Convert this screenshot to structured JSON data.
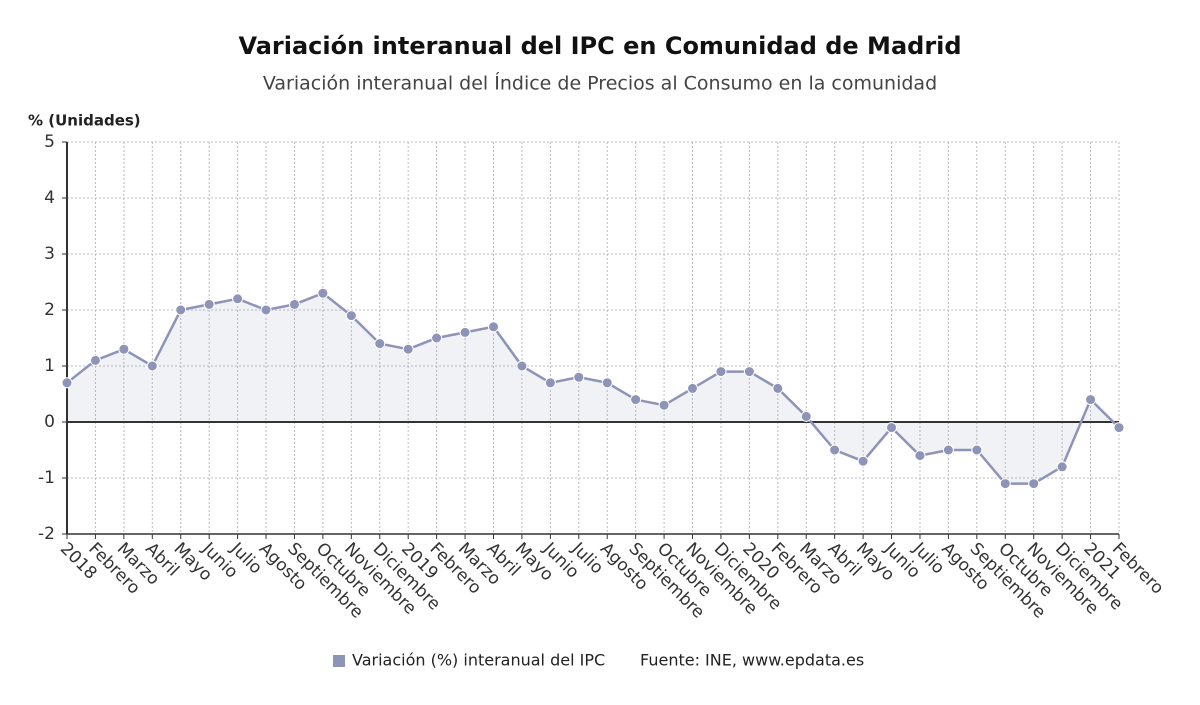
{
  "chart_data": {
    "type": "line",
    "title": "Variación interanual del IPC en Comunidad de Madrid",
    "subtitle": "Variación interanual del Índice de Precios al Consumo en la comunidad",
    "y_label": "% (Unidades)",
    "source": "Fuente: INE, www.epdata.es",
    "categories": [
      "2018",
      "Febrero",
      "Marzo",
      "Abril",
      "Mayo",
      "Junio",
      "Julio",
      "Agosto",
      "Septiembre",
      "Octubre",
      "Noviembre",
      "Diciembre",
      "2019",
      "Febrero",
      "Marzo",
      "Abril",
      "Mayo",
      "Junio",
      "Julio",
      "Agosto",
      "Septiembre",
      "Octubre",
      "Noviembre",
      "Diciembre",
      "2020",
      "Febrero",
      "Marzo",
      "Abril",
      "Mayo",
      "Junio",
      "Julio",
      "Agosto",
      "Septiembre",
      "Octubre",
      "Noviembre",
      "Diciembre",
      "2021",
      "Febrero"
    ],
    "series": [
      {
        "name": "Variación (%) interanual del IPC",
        "color": "#8e93b8",
        "values": [
          0.7,
          1.1,
          1.3,
          1.0,
          2.0,
          2.1,
          2.2,
          2.0,
          2.1,
          2.3,
          1.9,
          1.4,
          1.3,
          1.5,
          1.6,
          1.7,
          1.0,
          0.7,
          0.8,
          0.7,
          0.4,
          0.3,
          0.6,
          0.9,
          0.9,
          0.6,
          0.1,
          -0.5,
          -0.7,
          -0.1,
          -0.6,
          -0.5,
          -0.5,
          -1.1,
          -1.1,
          -0.8,
          0.4,
          -0.1
        ]
      }
    ],
    "ylim": [
      -2,
      5
    ],
    "yticks": [
      -2,
      -1,
      0,
      1,
      2,
      3,
      4,
      5
    ],
    "grid": true,
    "legend": "bottom"
  }
}
